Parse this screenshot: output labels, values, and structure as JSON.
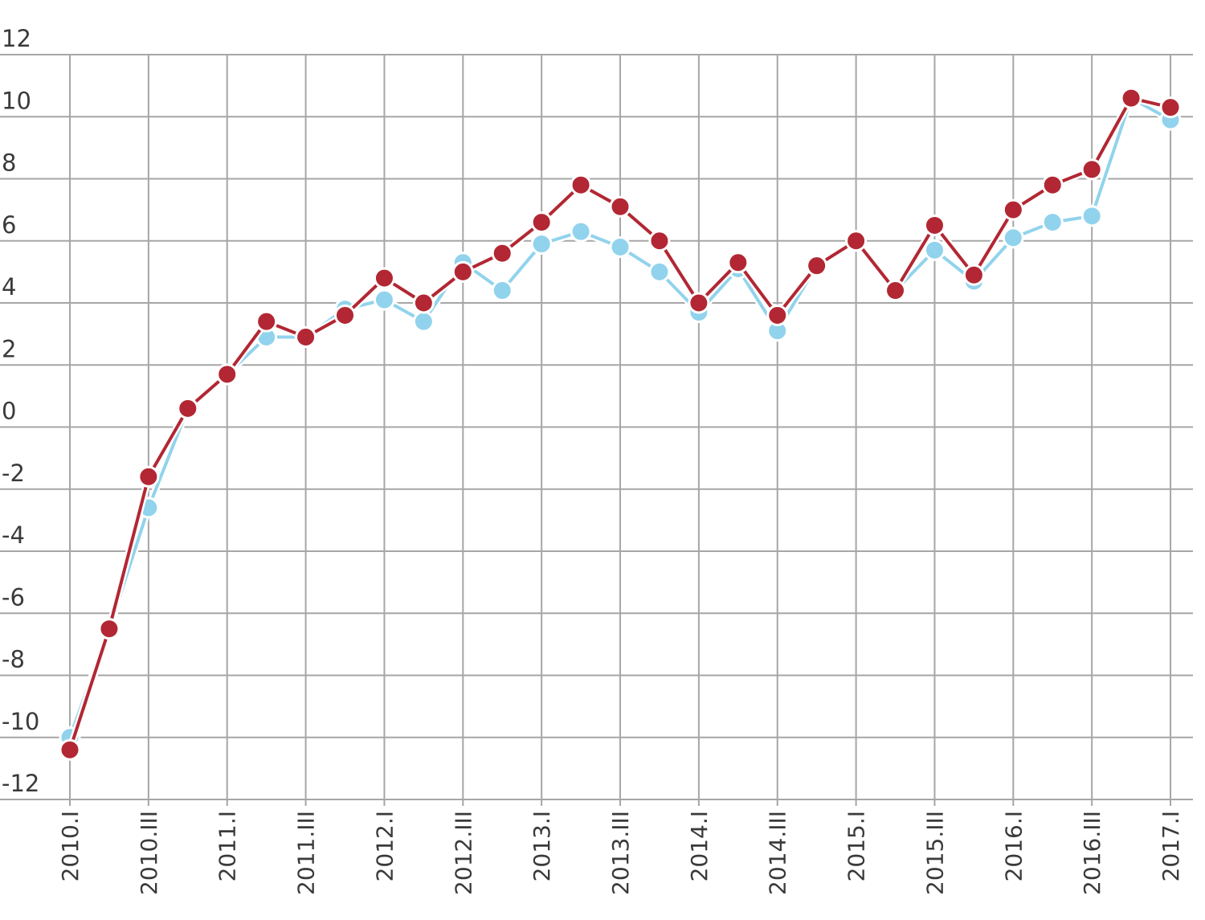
{
  "chart_data": {
    "type": "line",
    "title": "",
    "xlabel": "",
    "ylabel": "",
    "ylim": [
      -12,
      12
    ],
    "y_ticks": [
      "12",
      "10",
      "8",
      "6",
      "4",
      "2",
      "0",
      "-2",
      "-4",
      "-6",
      "-8",
      "-10",
      "-12"
    ],
    "x_tick_labels": [
      "2010.I",
      "2010.III",
      "2011.I",
      "2011.III",
      "2012.I",
      "2012.III",
      "2013.I",
      "2013.III",
      "2014.I",
      "2014.III",
      "2015.I",
      "2015.III",
      "2016.I",
      "2016.III",
      "2017.I"
    ],
    "categories": [
      "2010.I",
      "2010.II",
      "2010.III",
      "2010.IV",
      "2011.I",
      "2011.II",
      "2011.III",
      "2011.IV",
      "2012.I",
      "2012.II",
      "2012.III",
      "2012.IV",
      "2013.I",
      "2013.II",
      "2013.III",
      "2013.IV",
      "2014.I",
      "2014.II",
      "2014.III",
      "2014.IV",
      "2015.I",
      "2015.II",
      "2015.III",
      "2015.IV",
      "2016.I",
      "2016.II",
      "2016.III",
      "2016.IV",
      "2017.I"
    ],
    "grid": true,
    "legend": "none",
    "series": [
      {
        "color": "#91d3ec",
        "values": [
          -10.0,
          -6.5,
          -2.6,
          0.6,
          1.7,
          2.9,
          2.9,
          3.8,
          4.1,
          3.4,
          5.3,
          4.4,
          5.9,
          6.3,
          5.8,
          5.0,
          3.7,
          5.1,
          3.1,
          5.2,
          6.0,
          4.4,
          5.7,
          4.7,
          6.1,
          6.6,
          6.8,
          10.6,
          9.9
        ]
      },
      {
        "color": "#b22733",
        "values": [
          -10.4,
          -6.5,
          -1.6,
          0.6,
          1.7,
          3.4,
          2.9,
          3.6,
          4.8,
          4.0,
          5.0,
          5.6,
          6.6,
          7.8,
          7.1,
          6.0,
          4.0,
          5.3,
          3.6,
          5.2,
          6.0,
          4.4,
          6.5,
          4.9,
          7.0,
          7.8,
          8.3,
          10.6,
          10.3
        ]
      }
    ]
  }
}
